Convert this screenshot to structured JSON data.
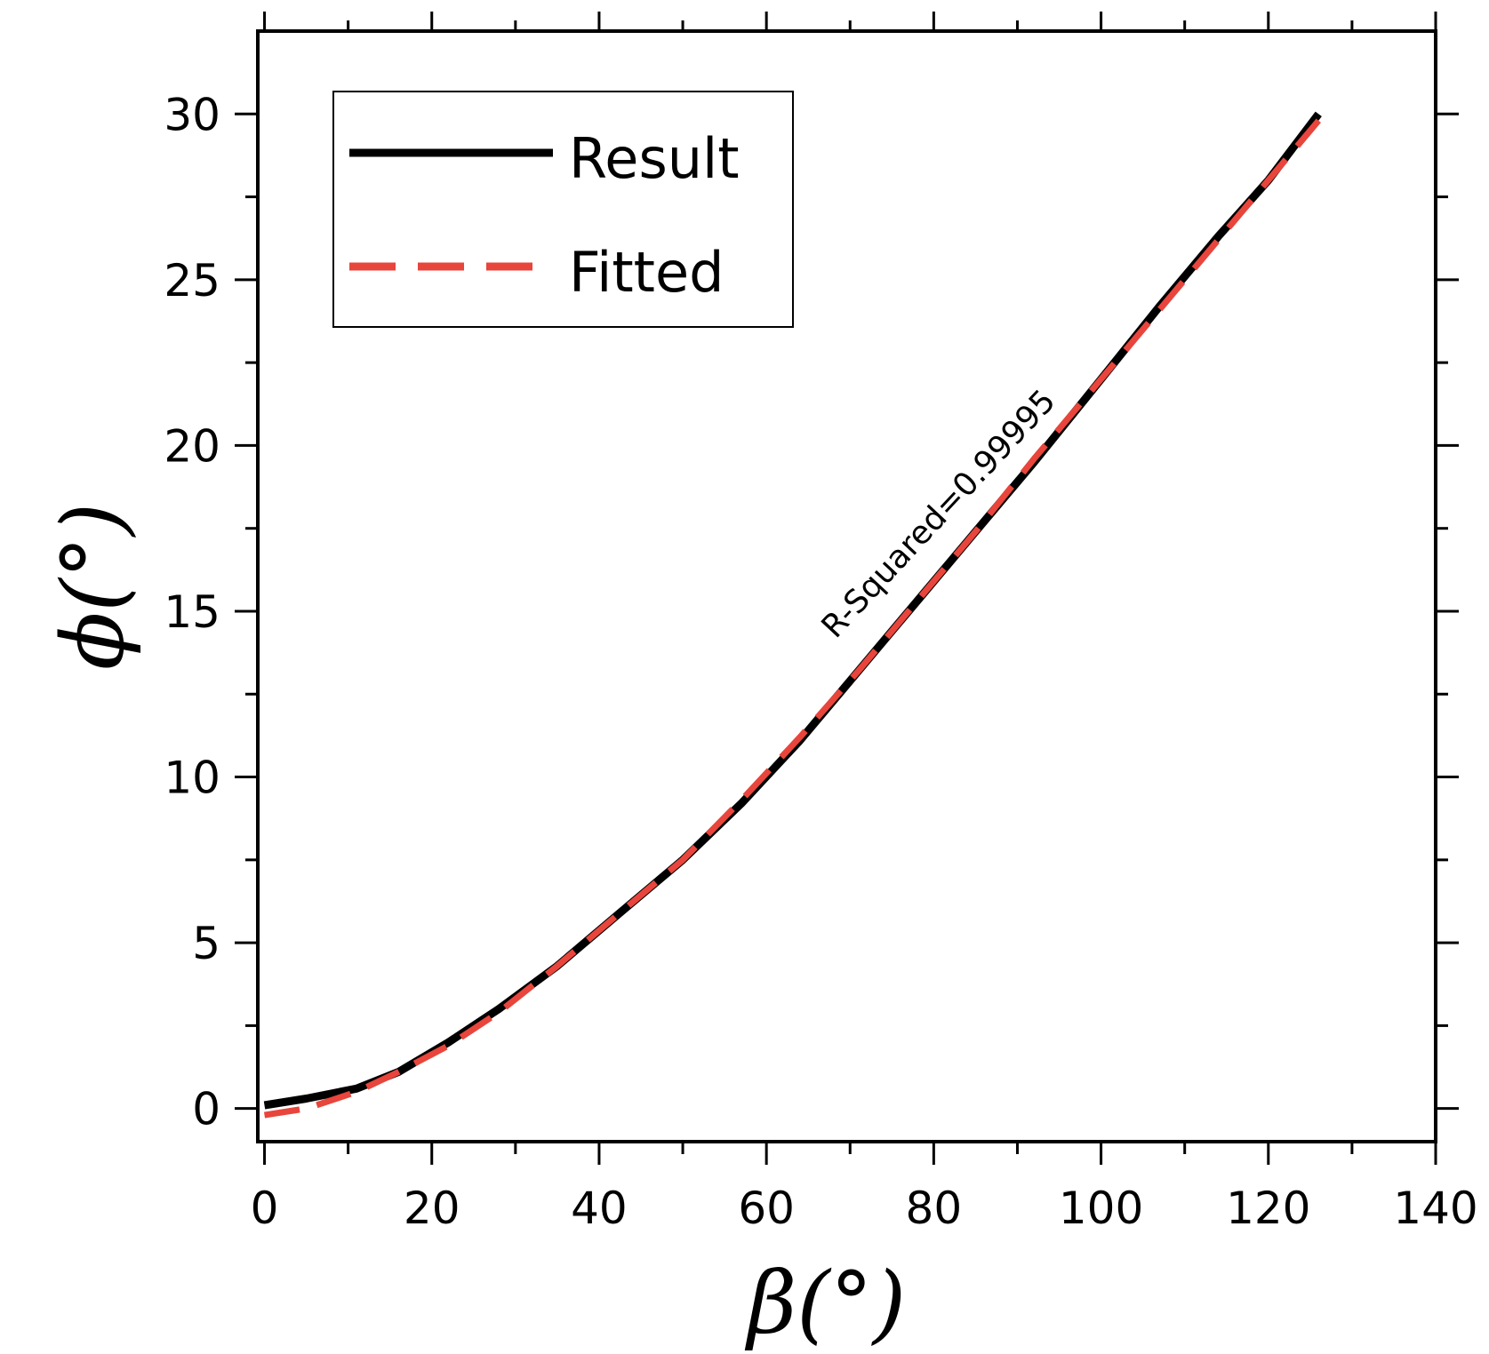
{
  "chart_data": {
    "type": "line",
    "title": "",
    "xlabel": "β(°)",
    "ylabel": "ϕ(°)",
    "xlim": [
      -0.8,
      140
    ],
    "ylim": [
      -1,
      32.5
    ],
    "xticks": [
      0,
      20,
      40,
      60,
      80,
      100,
      120,
      140
    ],
    "yticks": [
      0,
      5,
      10,
      15,
      20,
      25,
      30
    ],
    "grid": false,
    "legend_position": "top-left",
    "annotation": "R-Squared=0.99995",
    "colors": {
      "result": "#000000",
      "fitted": "#e8453c"
    },
    "series": [
      {
        "name": "Result",
        "style": "solid",
        "x": [
          0,
          5,
          11,
          16,
          22,
          28,
          35,
          42,
          50,
          57,
          64,
          71,
          78,
          85,
          92,
          100,
          107,
          114,
          120,
          126
        ],
        "y": [
          0.1,
          0.3,
          0.6,
          1.1,
          2.0,
          3.0,
          4.3,
          5.8,
          7.5,
          9.2,
          11.1,
          13.2,
          15.3,
          17.4,
          19.5,
          22.0,
          24.2,
          26.3,
          28.0,
          30.0
        ]
      },
      {
        "name": "Fitted",
        "style": "dashed",
        "x": [
          0,
          5,
          11,
          16,
          22,
          28,
          35,
          42,
          50,
          57,
          64,
          71,
          78,
          85,
          92,
          100,
          107,
          114,
          120,
          126
        ],
        "y": [
          -0.2,
          0.0,
          0.5,
          1.1,
          1.9,
          2.9,
          4.3,
          5.8,
          7.5,
          9.3,
          11.2,
          13.2,
          15.3,
          17.4,
          19.6,
          22.0,
          24.1,
          26.2,
          28.0,
          29.8
        ]
      }
    ]
  }
}
